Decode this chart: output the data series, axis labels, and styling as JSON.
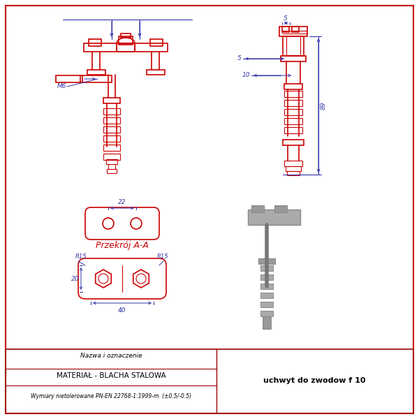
{
  "bg_color": "#ffffff",
  "border_color": "#cc0000",
  "line_color": "#cc0000",
  "dim_color": "#3333aa",
  "text_color": "#000000",
  "section_label": "Przekrój A-A",
  "dim_M6": "M6",
  "dim_22": "22",
  "dim_R15_left": "R15",
  "dim_R15_right": "R15",
  "dim_20": "20",
  "dim_40": "40",
  "dim_5": "5",
  "dim_10": "10",
  "dim_89": "89",
  "subtitle_label": "Nazwa i oznaczenie",
  "material_label": "MATERIAŁ - BLACHA STALOWA",
  "tolerance_label": "Wymiary nietolerowane PN-EN 22768-1:1999-m  (±0.5/-0.5)",
  "title_label": "uchwyt do zwodow f 10"
}
